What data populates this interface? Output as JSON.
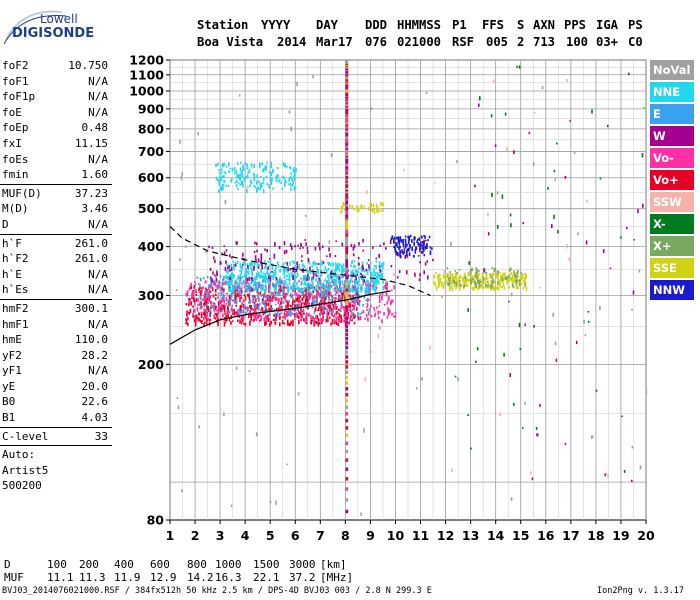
{
  "logo": {
    "line1": "Lowell",
    "line2": "DIGISONDE"
  },
  "header": {
    "row1": [
      "Station",
      "YYYY",
      "DAY",
      "DDD",
      "HHMMSS",
      "P1",
      "FFS",
      "S",
      "AXN",
      "PPS",
      "IGA",
      "PS"
    ],
    "row2": [
      "Boa Vista",
      "2014",
      "Mar17",
      "076",
      "021000",
      "RSF",
      "005",
      "2",
      "713",
      "100",
      "03+",
      "C0"
    ]
  },
  "params_group1": [
    {
      "key": "foF2",
      "value": "10.750"
    },
    {
      "key": "foF1",
      "value": "N/A"
    },
    {
      "key": "foF1p",
      "value": "N/A"
    },
    {
      "key": "foE",
      "value": "N/A"
    },
    {
      "key": "foEp",
      "value": "0.48"
    },
    {
      "key": "fxI",
      "value": "11.15"
    },
    {
      "key": "foEs",
      "value": "N/A"
    },
    {
      "key": "fmin",
      "value": "1.60"
    }
  ],
  "params_group2": [
    {
      "key": "MUF(D)",
      "value": "37.23"
    },
    {
      "key": "M(D)",
      "value": "3.46"
    },
    {
      "key": "D",
      "value": "N/A"
    }
  ],
  "params_group3": [
    {
      "key": "h`F",
      "value": "261.0"
    },
    {
      "key": "h`F2",
      "value": "261.0"
    },
    {
      "key": "h`E",
      "value": "N/A"
    },
    {
      "key": "h`Es",
      "value": "N/A"
    }
  ],
  "params_group4": [
    {
      "key": "hmF2",
      "value": "300.1"
    },
    {
      "key": "hmF1",
      "value": "N/A"
    },
    {
      "key": "hmE",
      "value": "110.0"
    },
    {
      "key": "yF2",
      "value": "28.2"
    },
    {
      "key": "yF1",
      "value": "N/A"
    },
    {
      "key": "yE",
      "value": "20.0"
    },
    {
      "key": "B0",
      "value": "22.6"
    },
    {
      "key": "B1",
      "value": "4.03"
    }
  ],
  "params_group5": [
    {
      "key": "C-level",
      "value": "33"
    }
  ],
  "autoscaling": {
    "line1": "Auto:",
    "line2": "Artist5",
    "line3": "500200"
  },
  "muf_table": {
    "d_label": "D",
    "d_values": [
      "100",
      "200",
      "400",
      "600",
      "800",
      "1000",
      "1500",
      "3000"
    ],
    "d_unit": "[km]",
    "muf_label": "MUF",
    "muf_values": [
      "11.1",
      "11.3",
      "11.9",
      "12.9",
      "14.2",
      "16.3",
      "22.1",
      "37.2"
    ],
    "muf_unit": "[MHz]"
  },
  "footer": {
    "left": "BVJ03_2014076021000.RSF / 384fx512h 50 kHz 2.5 km / DPS-4D BVJ03 003 / 2.8 N 299.3 E",
    "right": "Ion2Png v. 1.3.17"
  },
  "legend": [
    {
      "label": "NoVal",
      "bg": "#a0a0a0",
      "fg": "#ffffff"
    },
    {
      "label": "NNE",
      "bg": "#22d8ee",
      "fg": "#ffffff"
    },
    {
      "label": "E",
      "bg": "#3aa0f0",
      "fg": "#ffffff"
    },
    {
      "label": "W",
      "bg": "#a4008f",
      "fg": "#ffffff"
    },
    {
      "label": "Vo-",
      "bg": "#ff2fa6",
      "fg": "#ffffff"
    },
    {
      "label": "Vo+",
      "bg": "#e60026",
      "fg": "#ffffff"
    },
    {
      "label": "SSW",
      "bg": "#f4b2a9",
      "fg": "#ffffff"
    },
    {
      "label": "X-",
      "bg": "#007a1e",
      "fg": "#ffffff"
    },
    {
      "label": "X+",
      "bg": "#79a860",
      "fg": "#ffffff"
    },
    {
      "label": "SSE",
      "bg": "#d0d214",
      "fg": "#ffffff"
    },
    {
      "label": "NNW",
      "bg": "#1c1ad0",
      "fg": "#ffffff"
    }
  ],
  "chart_data": {
    "type": "scatter",
    "xlim": [
      1,
      20
    ],
    "ylim": [
      80,
      1200
    ],
    "x_ticks": [
      1,
      2,
      3,
      4,
      5,
      6,
      7,
      8,
      9,
      10,
      11,
      12,
      13,
      14,
      15,
      16,
      17,
      18,
      19,
      20
    ],
    "y_ticks": [
      80,
      200,
      300,
      400,
      500,
      600,
      700,
      800,
      900,
      1000,
      1100,
      1200
    ],
    "grid": true,
    "legend_position": "right",
    "scale_y": "log",
    "clusters": [
      {
        "mode": "Vo+",
        "color": "#e60026",
        "x": [
          1.6,
          8.5
        ],
        "y": [
          255,
          320
        ],
        "n": 700
      },
      {
        "mode": "Vo-",
        "color": "#ff2fa6",
        "x": [
          1.6,
          10
        ],
        "y": [
          260,
          330
        ],
        "n": 450
      },
      {
        "mode": "NNE",
        "color": "#22d8ee",
        "x": [
          3.2,
          9.5
        ],
        "y": [
          310,
          370
        ],
        "n": 600
      },
      {
        "mode": "NNE",
        "color": "#22d8ee",
        "x": [
          2.8,
          6
        ],
        "y": [
          560,
          660
        ],
        "n": 180
      },
      {
        "mode": "E",
        "color": "#3aa0f0",
        "x": [
          2,
          9
        ],
        "y": [
          270,
          340
        ],
        "n": 250
      },
      {
        "mode": "W",
        "color": "#a4008f",
        "x": [
          2.5,
          11.5
        ],
        "y": [
          330,
          420
        ],
        "n": 180
      },
      {
        "mode": "NNW",
        "color": "#1c1ad0",
        "x": [
          9.8,
          11.4
        ],
        "y": [
          380,
          430
        ],
        "n": 110
      },
      {
        "mode": "SSE",
        "color": "#d0d214",
        "x": [
          11.5,
          15.2
        ],
        "y": [
          315,
          345
        ],
        "n": 260
      },
      {
        "mode": "SSE",
        "color": "#d0d214",
        "x": [
          7.8,
          9.5
        ],
        "y": [
          495,
          520
        ],
        "n": 50
      },
      {
        "mode": "X+",
        "color": "#79a860",
        "x": [
          12,
          15
        ],
        "y": [
          320,
          355
        ],
        "n": 80
      },
      {
        "mode": "X-",
        "color": "#007a1e",
        "x": [
          12,
          20
        ],
        "y": [
          85,
          1190
        ],
        "n": 40
      },
      {
        "mode": "NoVal",
        "color": "#a0a0a0",
        "x": [
          1,
          20
        ],
        "y": [
          80,
          1200
        ],
        "n": 70
      },
      {
        "mode": "SSW",
        "color": "#f4b2a9",
        "x": [
          8,
          19
        ],
        "y": [
          90,
          1100
        ],
        "n": 25
      },
      {
        "mode": "W",
        "color": "#a4008f",
        "x": [
          13,
          20
        ],
        "y": [
          90,
          1200
        ],
        "n": 30
      }
    ],
    "traces": [
      {
        "name": "F2 virtual height trace",
        "color": "#000000",
        "dash": false,
        "points": [
          [
            1,
            225
          ],
          [
            2,
            245
          ],
          [
            3,
            260
          ],
          [
            4,
            268
          ],
          [
            6,
            278
          ],
          [
            8,
            292
          ],
          [
            9,
            302
          ],
          [
            9.8,
            308
          ]
        ]
      },
      {
        "name": "F2 X trace",
        "color": "#000000",
        "dash": true,
        "points": [
          [
            1,
            450
          ],
          [
            1.5,
            420
          ],
          [
            2.5,
            390
          ],
          [
            4,
            370
          ],
          [
            6,
            350
          ],
          [
            8,
            338
          ],
          [
            9.5,
            330
          ],
          [
            10.5,
            318
          ],
          [
            11.4,
            300
          ]
        ]
      }
    ]
  }
}
